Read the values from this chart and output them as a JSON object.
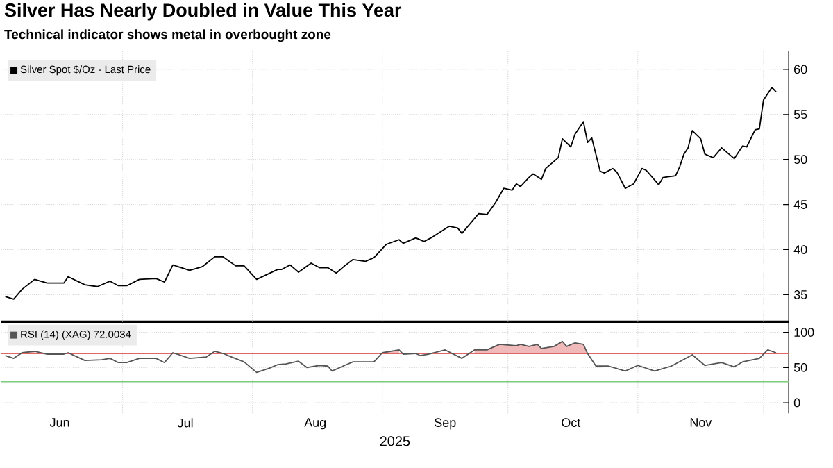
{
  "chart_data": [
    {
      "type": "line",
      "title": "Silver Has Nearly Doubled in Value This Year",
      "subtitle": "Technical indicator shows metal in overbought zone",
      "x": [
        "2025-06-03",
        "2025-06-05",
        "2025-06-07",
        "2025-06-10",
        "2025-06-13",
        "2025-06-17",
        "2025-06-18",
        "2025-06-22",
        "2025-06-25",
        "2025-06-28",
        "2025-06-30",
        "2025-07-02",
        "2025-07-05",
        "2025-07-09",
        "2025-07-11",
        "2025-07-13",
        "2025-07-17",
        "2025-07-20",
        "2025-07-23",
        "2025-07-25",
        "2025-07-28",
        "2025-07-30",
        "2025-08-02",
        "2025-08-07",
        "2025-08-08",
        "2025-08-10",
        "2025-08-12",
        "2025-08-15",
        "2025-08-17",
        "2025-08-19",
        "2025-08-21",
        "2025-08-23",
        "2025-08-25",
        "2025-08-28",
        "2025-08-30",
        "2025-09-02",
        "2025-09-05",
        "2025-09-06",
        "2025-09-09",
        "2025-09-11",
        "2025-09-13",
        "2025-09-17",
        "2025-09-19",
        "2025-09-20",
        "2025-09-24",
        "2025-09-26",
        "2025-09-28",
        "2025-09-30",
        "2025-10-02",
        "2025-10-03",
        "2025-10-04",
        "2025-10-06",
        "2025-10-07",
        "2025-10-09",
        "2025-10-10",
        "2025-10-13",
        "2025-10-14",
        "2025-10-16",
        "2025-10-17",
        "2025-10-19",
        "2025-10-20",
        "2025-10-21",
        "2025-10-23",
        "2025-10-24",
        "2025-10-26",
        "2025-10-27",
        "2025-10-29",
        "2025-10-31",
        "2025-11-02",
        "2025-11-03",
        "2025-11-06",
        "2025-11-07",
        "2025-11-10",
        "2025-11-11",
        "2025-11-12",
        "2025-11-13",
        "2025-11-14",
        "2025-11-16",
        "2025-11-17",
        "2025-11-19",
        "2025-11-21",
        "2025-11-24",
        "2025-11-26",
        "2025-11-27",
        "2025-11-29",
        "2025-11-30",
        "2025-12-01",
        "2025-12-03",
        "2025-12-04"
      ],
      "series": [
        {
          "name": "Silver Spot $/Oz - Last Price",
          "color": "#000000",
          "values": [
            34.8,
            34.5,
            35.6,
            36.7,
            36.3,
            36.3,
            37.0,
            36.1,
            35.9,
            36.5,
            36.0,
            36.0,
            36.7,
            36.8,
            36.4,
            38.3,
            37.7,
            38.1,
            39.2,
            39.2,
            38.2,
            38.2,
            36.7,
            37.8,
            37.8,
            38.3,
            37.5,
            38.5,
            38.0,
            38.0,
            37.4,
            38.2,
            38.9,
            38.7,
            39.1,
            40.6,
            41.1,
            40.7,
            41.3,
            40.9,
            41.4,
            42.6,
            42.4,
            41.8,
            44.0,
            43.9,
            45.2,
            46.8,
            46.6,
            47.3,
            47.0,
            48.0,
            48.4,
            47.8,
            49.0,
            50.2,
            52.3,
            51.4,
            52.8,
            54.2,
            51.9,
            52.4,
            48.7,
            48.5,
            49.0,
            48.6,
            46.8,
            47.3,
            49.0,
            48.8,
            47.2,
            48.0,
            48.2,
            49.2,
            50.6,
            51.3,
            53.2,
            52.3,
            50.6,
            50.2,
            51.3,
            50.1,
            51.5,
            51.4,
            53.3,
            53.4,
            56.6,
            58.0,
            57.5
          ]
        }
      ],
      "xlim": [
        "2025-06-02",
        "2025-12-07"
      ],
      "xticks": [
        {
          "value": "2025-07-01",
          "label": null
        },
        {
          "value": "2025-08-01",
          "label": null
        },
        {
          "value": "2025-09-01",
          "label": null
        },
        {
          "value": "2025-10-01",
          "label": null
        },
        {
          "value": "2025-11-01",
          "label": null
        },
        {
          "value": "2025-12-01",
          "label": null
        }
      ],
      "ylim": [
        32,
        62
      ],
      "yticks": [
        35,
        40,
        45,
        50,
        55,
        60
      ],
      "tick_labels": "y",
      "grid": true,
      "legend": "top left"
    },
    {
      "type": "line",
      "xlabel": "2025",
      "series": [
        {
          "name": "RSI (14) (XAG) 72.0034",
          "color": "#555555",
          "x": [
            "2025-06-03",
            "2025-06-05",
            "2025-06-07",
            "2025-06-10",
            "2025-06-13",
            "2025-06-17",
            "2025-06-18",
            "2025-06-22",
            "2025-06-26",
            "2025-06-28",
            "2025-06-30",
            "2025-07-02",
            "2025-07-05",
            "2025-07-09",
            "2025-07-11",
            "2025-07-13",
            "2025-07-17",
            "2025-07-21",
            "2025-07-23",
            "2025-07-25",
            "2025-07-27",
            "2025-07-30",
            "2025-08-02",
            "2025-08-05",
            "2025-08-07",
            "2025-08-09",
            "2025-08-12",
            "2025-08-14",
            "2025-08-17",
            "2025-08-19",
            "2025-08-20",
            "2025-08-23",
            "2025-08-25",
            "2025-08-30",
            "2025-09-01",
            "2025-09-05",
            "2025-09-06",
            "2025-09-09",
            "2025-09-10",
            "2025-09-12",
            "2025-09-16",
            "2025-09-20",
            "2025-09-23",
            "2025-09-26",
            "2025-09-29",
            "2025-10-03",
            "2025-10-04",
            "2025-10-06",
            "2025-10-08",
            "2025-10-09",
            "2025-10-12",
            "2025-10-14",
            "2025-10-15",
            "2025-10-17",
            "2025-10-19",
            "2025-10-20",
            "2025-10-22",
            "2025-10-25",
            "2025-10-29",
            "2025-11-01",
            "2025-11-05",
            "2025-11-09",
            "2025-11-14",
            "2025-11-17",
            "2025-11-21",
            "2025-11-24",
            "2025-11-26",
            "2025-11-30",
            "2025-12-02",
            "2025-12-04"
          ],
          "values": [
            67,
            63,
            71,
            73,
            69,
            69,
            71,
            60,
            61,
            63,
            57,
            57,
            63,
            63,
            57,
            71,
            63,
            65,
            73,
            70,
            65,
            58,
            43,
            49,
            54,
            55,
            59,
            50,
            53,
            52,
            45,
            53,
            58,
            58,
            71,
            75,
            69,
            70,
            67,
            69,
            75,
            63,
            75,
            75,
            83,
            81,
            83,
            80,
            83,
            77,
            80,
            87,
            80,
            85,
            83,
            70,
            52,
            52,
            45,
            53,
            45,
            52,
            68,
            53,
            57,
            51,
            58,
            63,
            75,
            71
          ],
          "upper": [
            null,
            null,
            71,
            73,
            null,
            null,
            null,
            null,
            null,
            null,
            null,
            null,
            null,
            null,
            null,
            null,
            null,
            null,
            null,
            null,
            null,
            null,
            null,
            null,
            null,
            null,
            null,
            null,
            null,
            null,
            null,
            null,
            null,
            null,
            71,
            75,
            null,
            null,
            null,
            null,
            null,
            null,
            75,
            75,
            83,
            81,
            83,
            80,
            83,
            77,
            80,
            87,
            80,
            85,
            83,
            70,
            null,
            null,
            null,
            null,
            null,
            null,
            null,
            null,
            null,
            null,
            null,
            null,
            null,
            null
          ],
          "lower": [
            null,
            null,
            70,
            70,
            null,
            null,
            null,
            null,
            null,
            null,
            null,
            null,
            null,
            null,
            null,
            null,
            null,
            null,
            null,
            null,
            null,
            null,
            null,
            null,
            null,
            null,
            null,
            null,
            null,
            null,
            null,
            null,
            null,
            null,
            70,
            70,
            null,
            null,
            null,
            null,
            null,
            null,
            70,
            70,
            70,
            70,
            70,
            70,
            70,
            70,
            70,
            70,
            70,
            70,
            70,
            70,
            null,
            null,
            null,
            null,
            null,
            null,
            null,
            null,
            null,
            null,
            null,
            null,
            null,
            null
          ]
        }
      ],
      "xlim": [
        "2025-06-02",
        "2025-12-07"
      ],
      "xticks": [
        {
          "value": "2025-06-16",
          "label": "Jun"
        },
        {
          "value": "2025-07-01",
          "label": null
        },
        {
          "value": "2025-07-16",
          "label": "Jul"
        },
        {
          "value": "2025-08-01",
          "label": null
        },
        {
          "value": "2025-08-16",
          "label": "Aug"
        },
        {
          "value": "2025-09-01",
          "label": null
        },
        {
          "value": "2025-09-16",
          "label": "Sep"
        },
        {
          "value": "2025-10-01",
          "label": null
        },
        {
          "value": "2025-10-16",
          "label": "Oct"
        },
        {
          "value": "2025-11-01",
          "label": null
        },
        {
          "value": "2025-11-16",
          "label": "Nov"
        },
        {
          "value": "2025-12-01",
          "label": null
        }
      ],
      "ylim": [
        -15,
        115
      ],
      "yticks": [
        0,
        50,
        100
      ],
      "ref_lines": [
        {
          "axis": "y",
          "value": 70,
          "color": "#e06666"
        },
        {
          "axis": "y",
          "value": 30,
          "color": "#7dcc7d"
        }
      ],
      "grid": true,
      "legend": "top left"
    }
  ]
}
